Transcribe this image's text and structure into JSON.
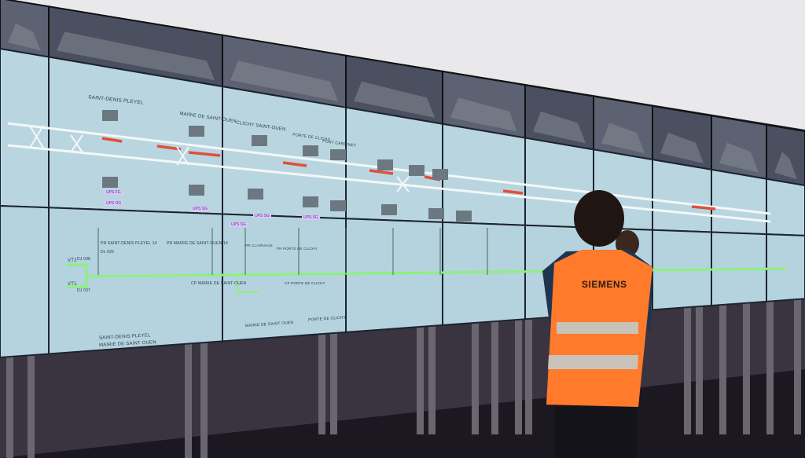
{
  "colors": {
    "screen": "#b9d6e0",
    "track": "#f4f7f8",
    "occupied": "#e0503c",
    "power": "#8cf27a",
    "vest": "#ff7a2a",
    "vest_stripe": "#c9c2b8",
    "ceiling": "#e9e9ec",
    "floor": "#1c1822"
  },
  "vest": {
    "brand": "SIEMENS"
  },
  "schematic": {
    "stations": [
      "SAINT-DENIS PLEYEL",
      "MAIRIE DE SAINT-OUEN",
      "CLICHY SAINT-OUEN",
      "PORTE DE CLICHY",
      "PONT CARDINET"
    ],
    "ups": [
      "UPS FG",
      "UPS DG",
      "UPS SG",
      "UPS SG",
      "UPS SG",
      "UPS SG"
    ]
  },
  "power": {
    "labels": [
      "PR SAINT-DENIS PLEYEL 14",
      "Dv 026",
      "VT2",
      "DJ 038",
      "VT1",
      "DJ 037",
      "PR MAIRIE DE SAINT-OUEN 14",
      "CP MAIRIE DE SAINT-OUEN",
      "PR CLAIRVAUX",
      "PR PORTE DE CLICHY",
      "CP PORTE DE CLICHY"
    ],
    "footer": [
      "SAINT-DENIS PLEYEL",
      "MAIRIE DE SAINT OUEN",
      "MAIRIE DE SAINT OUEN",
      "PORTE DE CLICHY"
    ]
  }
}
